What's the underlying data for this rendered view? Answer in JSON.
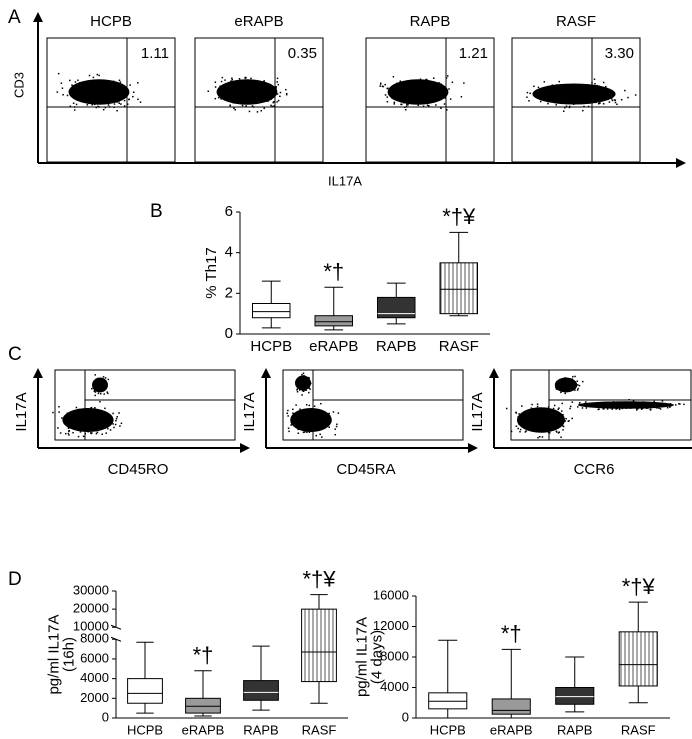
{
  "panels": {
    "A": {
      "letter": "A",
      "plots": [
        "HCPB",
        "eRAPB",
        "RAPB",
        "RASF"
      ],
      "percentages": [
        "1.11",
        "0.35",
        "1.21",
        "3.30"
      ],
      "ylabel": "CD3",
      "xlabel": "IL17A"
    },
    "C": {
      "letter": "C",
      "ylabels": [
        "IL17A",
        "IL17A",
        "IL17A"
      ],
      "xlabels": [
        "CD45RO",
        "CD45RA",
        "CCR6"
      ]
    },
    "B": {
      "letter": "B"
    },
    "D": {
      "letter": "D"
    }
  },
  "chart_data": [
    {
      "type": "box",
      "ylabel": [
        "% Th17"
      ],
      "categories": [
        "HCPB",
        "eRAPB",
        "RAPB",
        "RASF"
      ],
      "min": [
        0.3,
        0.2,
        0.5,
        0.9
      ],
      "q1": [
        0.8,
        0.4,
        0.8,
        1.0
      ],
      "median": [
        1.1,
        0.6,
        1.0,
        2.2
      ],
      "q3": [
        1.5,
        0.9,
        1.8,
        3.5
      ],
      "max": [
        2.6,
        2.3,
        2.5,
        5.0
      ],
      "colors": [
        "#ffffff",
        "#9a9a9a",
        "#333333",
        "#ffffff"
      ],
      "hatch": [
        false,
        false,
        false,
        true
      ],
      "annotations": [
        null,
        "*†",
        null,
        "*†¥"
      ],
      "ylim": [
        0,
        6
      ],
      "yticks": [
        0,
        2,
        4,
        6
      ]
    },
    {
      "type": "box",
      "ylabel": [
        "pg/ml IL17A",
        "(16h)"
      ],
      "categories": [
        "HCPB",
        "eRAPB",
        "RAPB",
        "RASF"
      ],
      "min": [
        500,
        200,
        800,
        1500
      ],
      "q1": [
        1500,
        500,
        1800,
        3700
      ],
      "median": [
        2500,
        1200,
        2600,
        6700
      ],
      "q3": [
        4000,
        2000,
        3800,
        20000
      ],
      "max": [
        7700,
        4800,
        7300,
        28000
      ],
      "colors": [
        "#ffffff",
        "#9a9a9a",
        "#333333",
        "#ffffff"
      ],
      "hatch": [
        false,
        false,
        false,
        true
      ],
      "annotations": [
        null,
        "*†",
        null,
        "*†¥"
      ],
      "ylim": [
        0,
        30000
      ],
      "ybreak": [
        8000,
        10000
      ],
      "yticks": [
        0,
        2000,
        4000,
        6000,
        8000,
        10000,
        20000,
        30000
      ]
    },
    {
      "type": "box",
      "ylabel": [
        "pg/ml IL17A",
        "(4 days)"
      ],
      "categories": [
        "HCPB",
        "eRAPB",
        "RAPB",
        "RASF"
      ],
      "min": [
        0,
        0,
        800,
        2000
      ],
      "q1": [
        1200,
        500,
        1800,
        4200
      ],
      "median": [
        2200,
        1000,
        2800,
        7000
      ],
      "q3": [
        3300,
        2500,
        4000,
        11300
      ],
      "max": [
        10200,
        9000,
        8000,
        15200
      ],
      "colors": [
        "#ffffff",
        "#9a9a9a",
        "#333333",
        "#ffffff"
      ],
      "hatch": [
        false,
        false,
        false,
        true
      ],
      "annotations": [
        null,
        "*†",
        null,
        "*†¥"
      ],
      "ylim": [
        0,
        16000
      ],
      "yticks": [
        0,
        4000,
        8000,
        12000,
        16000
      ]
    }
  ]
}
